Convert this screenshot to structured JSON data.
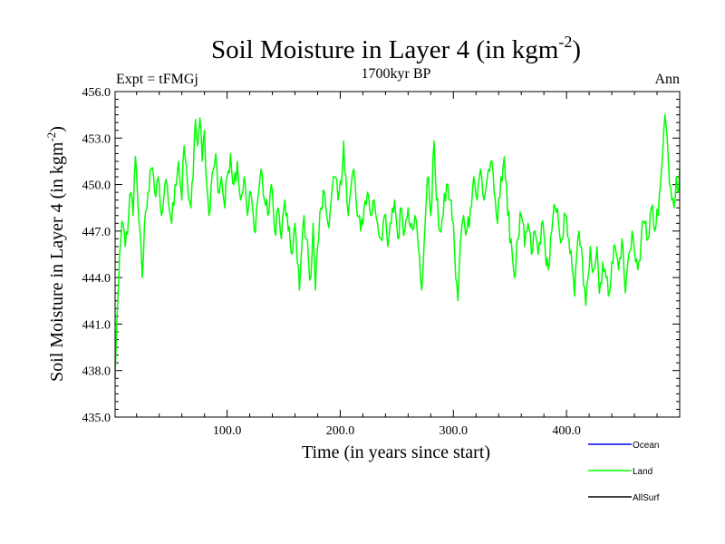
{
  "chart_data": {
    "type": "line",
    "title": "Soil Moisture in Layer 4 (in kgm",
    "title_superscript": "-2",
    "title_suffix": ")",
    "subtitle": "1700kyr BP",
    "left_label": "Expt = tFMGj",
    "right_label": "Ann",
    "xlabel": "Time (in years since start)",
    "ylabel": "Soil Moisture in Layer 4 (in kgm",
    "ylabel_superscript": "-2",
    "ylabel_suffix": ")",
    "xlim": [
      1,
      500
    ],
    "ylim": [
      435.0,
      456.0
    ],
    "x_ticks": [
      {
        "value": 100,
        "label": "100.0"
      },
      {
        "value": 200,
        "label": "200.0"
      },
      {
        "value": 300,
        "label": "300.0"
      },
      {
        "value": 400,
        "label": "400.0"
      }
    ],
    "y_ticks": [
      {
        "value": 435,
        "label": "435.0"
      },
      {
        "value": 438,
        "label": "438.0"
      },
      {
        "value": 441,
        "label": "441.0"
      },
      {
        "value": 444,
        "label": "444.0"
      },
      {
        "value": 447,
        "label": "447.0"
      },
      {
        "value": 450,
        "label": "450.0"
      },
      {
        "value": 453,
        "label": "453.0"
      },
      {
        "value": 456,
        "label": "456.0"
      }
    ],
    "legend": [
      {
        "name": "Ocean",
        "color": "#0000ff"
      },
      {
        "name": "Land",
        "color": "#00ff00"
      },
      {
        "name": "AllSurf",
        "color": "#000000"
      }
    ],
    "series": [
      {
        "name": "Land",
        "color": "#00ff00",
        "anchors": [
          [
            1,
            437.5
          ],
          [
            3,
            442.0
          ],
          [
            5,
            445.5
          ],
          [
            8,
            447.5
          ],
          [
            10,
            446.0
          ],
          [
            13,
            448.0
          ],
          [
            15,
            449.5
          ],
          [
            17,
            448.0
          ],
          [
            19,
            451.8
          ],
          [
            21,
            449.0
          ],
          [
            23,
            447.0
          ],
          [
            25,
            444.0
          ],
          [
            27,
            447.5
          ],
          [
            30,
            449.5
          ],
          [
            33,
            451.0
          ],
          [
            36,
            449.5
          ],
          [
            39,
            450.5
          ],
          [
            42,
            448.0
          ],
          [
            45,
            450.0
          ],
          [
            48,
            449.0
          ],
          [
            51,
            447.5
          ],
          [
            54,
            450.0
          ],
          [
            57,
            451.5
          ],
          [
            60,
            449.0
          ],
          [
            62,
            452.5
          ],
          [
            65,
            450.0
          ],
          [
            68,
            448.5
          ],
          [
            70,
            450.5
          ],
          [
            72,
            454.2
          ],
          [
            74,
            452.5
          ],
          [
            76,
            454.3
          ],
          [
            78,
            451.5
          ],
          [
            80,
            453.5
          ],
          [
            82,
            450.0
          ],
          [
            84,
            448.0
          ],
          [
            86,
            450.0
          ],
          [
            88,
            451.0
          ],
          [
            90,
            452.0
          ],
          [
            92,
            449.5
          ],
          [
            95,
            450.5
          ],
          [
            98,
            448.5
          ],
          [
            100,
            450.5
          ],
          [
            103,
            452.0
          ],
          [
            106,
            450.0
          ],
          [
            109,
            451.5
          ],
          [
            112,
            449.0
          ],
          [
            115,
            450.5
          ],
          [
            118,
            448.0
          ],
          [
            121,
            449.5
          ],
          [
            124,
            447.0
          ],
          [
            127,
            449.0
          ],
          [
            130,
            451.0
          ],
          [
            133,
            449.0
          ],
          [
            136,
            448.0
          ],
          [
            139,
            450.0
          ],
          [
            142,
            447.0
          ],
          [
            145,
            448.5
          ],
          [
            148,
            446.5
          ],
          [
            151,
            449.0
          ],
          [
            154,
            447.0
          ],
          [
            157,
            445.5
          ],
          [
            160,
            447.5
          ],
          [
            162,
            445.0
          ],
          [
            164,
            443.2
          ],
          [
            166,
            446.0
          ],
          [
            168,
            448.0
          ],
          [
            170,
            446.5
          ],
          [
            172,
            445.0
          ],
          [
            174,
            444.0
          ],
          [
            176,
            447.5
          ],
          [
            178,
            443.2
          ],
          [
            180,
            446.0
          ],
          [
            183,
            448.5
          ],
          [
            186,
            449.5
          ],
          [
            189,
            447.5
          ],
          [
            192,
            449.0
          ],
          [
            195,
            450.5
          ],
          [
            198,
            449.0
          ],
          [
            201,
            450.0
          ],
          [
            203,
            452.8
          ],
          [
            205,
            450.5
          ],
          [
            207,
            448.0
          ],
          [
            209,
            449.5
          ],
          [
            212,
            451.0
          ],
          [
            215,
            448.0
          ],
          [
            218,
            447.0
          ],
          [
            221,
            448.5
          ],
          [
            224,
            449.5
          ],
          [
            227,
            448.0
          ],
          [
            230,
            449.0
          ],
          [
            233,
            447.5
          ],
          [
            236,
            446.5
          ],
          [
            239,
            448.0
          ],
          [
            242,
            446.0
          ],
          [
            245,
            447.5
          ],
          [
            248,
            449.0
          ],
          [
            251,
            446.5
          ],
          [
            254,
            448.5
          ],
          [
            257,
            447.0
          ],
          [
            260,
            448.5
          ],
          [
            263,
            447.5
          ],
          [
            266,
            448.0
          ],
          [
            269,
            446.0
          ],
          [
            272,
            443.2
          ],
          [
            274,
            446.0
          ],
          [
            276,
            449.0
          ],
          [
            278,
            450.5
          ],
          [
            280,
            448.0
          ],
          [
            283,
            452.8
          ],
          [
            285,
            449.0
          ],
          [
            288,
            447.0
          ],
          [
            291,
            448.0
          ],
          [
            294,
            450.0
          ],
          [
            297,
            449.0
          ],
          [
            300,
            447.5
          ],
          [
            302,
            444.0
          ],
          [
            304,
            442.5
          ],
          [
            306,
            446.0
          ],
          [
            309,
            448.0
          ],
          [
            312,
            447.0
          ],
          [
            315,
            448.5
          ],
          [
            318,
            450.5
          ],
          [
            321,
            449.0
          ],
          [
            324,
            451.0
          ],
          [
            327,
            449.0
          ],
          [
            330,
            450.5
          ],
          [
            333,
            451.5
          ],
          [
            336,
            449.5
          ],
          [
            339,
            447.5
          ],
          [
            342,
            450.5
          ],
          [
            345,
            451.8
          ],
          [
            348,
            448.0
          ],
          [
            351,
            446.5
          ],
          [
            354,
            444.0
          ],
          [
            357,
            446.5
          ],
          [
            360,
            448.0
          ],
          [
            363,
            446.0
          ],
          [
            366,
            447.5
          ],
          [
            369,
            445.5
          ],
          [
            372,
            447.0
          ],
          [
            375,
            445.5
          ],
          [
            378,
            447.5
          ],
          [
            381,
            446.0
          ],
          [
            384,
            444.5
          ],
          [
            387,
            447.0
          ],
          [
            390,
            448.5
          ],
          [
            393,
            447.5
          ],
          [
            396,
            446.5
          ],
          [
            399,
            448.0
          ],
          [
            402,
            446.5
          ],
          [
            405,
            444.5
          ],
          [
            407,
            442.8
          ],
          [
            409,
            445.5
          ],
          [
            411,
            447.0
          ],
          [
            413,
            446.0
          ],
          [
            415,
            443.5
          ],
          [
            417,
            442.2
          ],
          [
            419,
            444.0
          ],
          [
            421,
            446.0
          ],
          [
            424,
            444.5
          ],
          [
            427,
            446.0
          ],
          [
            429,
            443.0
          ],
          [
            432,
            445.0
          ],
          [
            435,
            444.0
          ],
          [
            437,
            442.8
          ],
          [
            440,
            445.0
          ],
          [
            443,
            446.0
          ],
          [
            446,
            444.5
          ],
          [
            449,
            446.5
          ],
          [
            452,
            443.0
          ],
          [
            455,
            445.5
          ],
          [
            458,
            447.0
          ],
          [
            461,
            445.0
          ],
          [
            463,
            444.5
          ],
          [
            466,
            446.5
          ],
          [
            469,
            447.5
          ],
          [
            472,
            446.5
          ],
          [
            475,
            448.5
          ],
          [
            478,
            447.0
          ],
          [
            481,
            448.0
          ],
          [
            483,
            450.0
          ],
          [
            485,
            452.0
          ],
          [
            487,
            454.5
          ],
          [
            489,
            453.0
          ],
          [
            491,
            450.0
          ],
          [
            493,
            449.0
          ],
          [
            495,
            448.5
          ],
          [
            497,
            450.5
          ],
          [
            499,
            449.5
          ],
          [
            500,
            451.0
          ]
        ]
      }
    ]
  }
}
